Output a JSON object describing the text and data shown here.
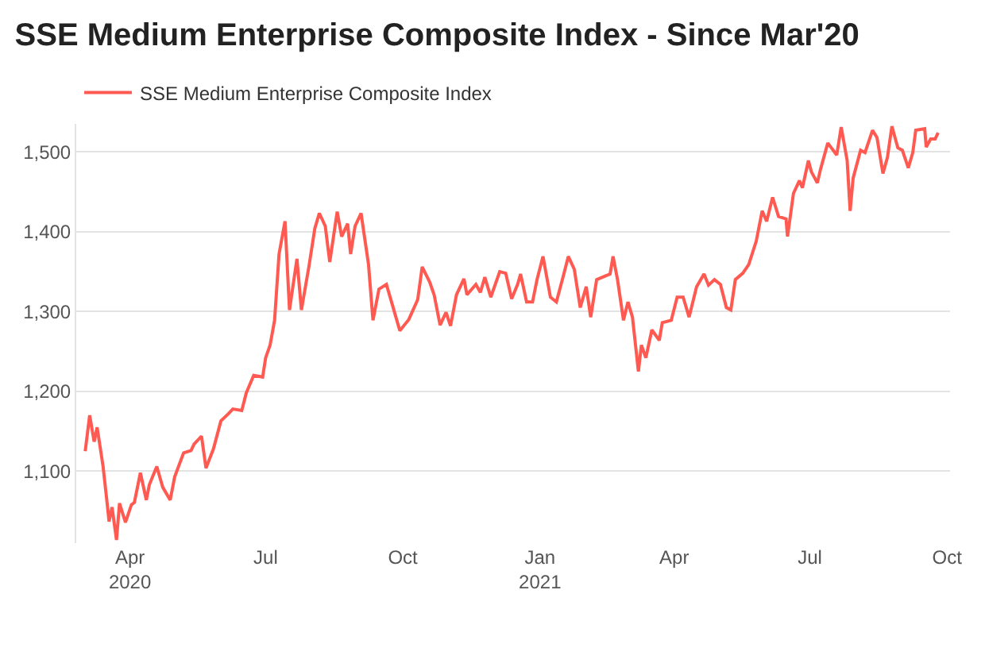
{
  "chart_data": {
    "type": "line",
    "title": "SSE Medium Enterprise Composite Index - Since Mar'20",
    "x": [
      "2020-03-02",
      "2020-03-05",
      "2020-03-08",
      "2020-03-10",
      "2020-03-14",
      "2020-03-17",
      "2020-03-18",
      "2020-03-20",
      "2020-03-23",
      "2020-03-25",
      "2020-03-29",
      "2020-04-02",
      "2020-04-04",
      "2020-04-08",
      "2020-04-12",
      "2020-04-14",
      "2020-04-19",
      "2020-04-23",
      "2020-04-28",
      "2020-05-01",
      "2020-05-07",
      "2020-05-12",
      "2020-05-14",
      "2020-05-19",
      "2020-05-22",
      "2020-05-27",
      "2020-06-01",
      "2020-06-06",
      "2020-06-09",
      "2020-06-15",
      "2020-06-18",
      "2020-06-23",
      "2020-06-29",
      "2020-07-01",
      "2020-07-04",
      "2020-07-07",
      "2020-07-10",
      "2020-07-14",
      "2020-07-17",
      "2020-07-22",
      "2020-07-25",
      "2020-07-30",
      "2020-08-03",
      "2020-08-06",
      "2020-08-10",
      "2020-08-13",
      "2020-08-18",
      "2020-08-21",
      "2020-08-25",
      "2020-08-27",
      "2020-08-30",
      "2020-09-03",
      "2020-09-08",
      "2020-09-11",
      "2020-09-15",
      "2020-09-20",
      "2020-09-25",
      "2020-09-29",
      "2020-10-05",
      "2020-10-11",
      "2020-10-14",
      "2020-10-19",
      "2020-10-22",
      "2020-10-26",
      "2020-10-30",
      "2020-11-02",
      "2020-11-06",
      "2020-11-11",
      "2020-11-13",
      "2020-11-19",
      "2020-11-22",
      "2020-11-25",
      "2020-11-29",
      "2020-12-05",
      "2020-12-09",
      "2020-12-13",
      "2020-12-17",
      "2020-12-19",
      "2020-12-23",
      "2020-12-27",
      "2020-12-30",
      "2021-01-03",
      "2021-01-08",
      "2021-01-12",
      "2021-01-17",
      "2021-01-20",
      "2021-01-24",
      "2021-01-28",
      "2021-02-01",
      "2021-02-04",
      "2021-02-08",
      "2021-02-17",
      "2021-02-19",
      "2021-02-22",
      "2021-02-26",
      "2021-03-01",
      "2021-03-04",
      "2021-03-08",
      "2021-03-10",
      "2021-03-13",
      "2021-03-17",
      "2021-03-22",
      "2021-03-24",
      "2021-03-30",
      "2021-04-03",
      "2021-04-07",
      "2021-04-11",
      "2021-04-16",
      "2021-04-21",
      "2021-04-24",
      "2021-04-28",
      "2021-05-02",
      "2021-05-06",
      "2021-05-09",
      "2021-05-12",
      "2021-05-17",
      "2021-05-21",
      "2021-05-26",
      "2021-05-30",
      "2021-06-02",
      "2021-06-06",
      "2021-06-10",
      "2021-06-15",
      "2021-06-16",
      "2021-06-20",
      "2021-06-24",
      "2021-06-26",
      "2021-06-30",
      "2021-07-02",
      "2021-07-06",
      "2021-07-08",
      "2021-07-13",
      "2021-07-19",
      "2021-07-22",
      "2021-07-26",
      "2021-07-28",
      "2021-07-30",
      "2021-08-04",
      "2021-08-07",
      "2021-08-12",
      "2021-08-15",
      "2021-08-19",
      "2021-08-22",
      "2021-08-25",
      "2021-08-29",
      "2021-09-01",
      "2021-09-05",
      "2021-09-08",
      "2021-09-10",
      "2021-09-16",
      "2021-09-17",
      "2021-09-20",
      "2021-09-23",
      "2021-09-25"
    ],
    "series": [
      {
        "name": "SSE Medium Enterprise Composite Index",
        "color": "#ff5a52",
        "values": [
          1125,
          1170,
          1137,
          1155,
          1106,
          1055,
          1037,
          1055,
          1014,
          1060,
          1036,
          1058,
          1061,
          1098,
          1064,
          1083,
          1106,
          1080,
          1064,
          1093,
          1123,
          1126,
          1134,
          1144,
          1104,
          1128,
          1163,
          1172,
          1178,
          1176,
          1198,
          1220,
          1218,
          1242,
          1258,
          1289,
          1372,
          1413,
          1302,
          1366,
          1302,
          1356,
          1404,
          1423,
          1407,
          1362,
          1425,
          1394,
          1410,
          1372,
          1407,
          1423,
          1359,
          1289,
          1328,
          1334,
          1302,
          1276,
          1290,
          1315,
          1356,
          1337,
          1321,
          1283,
          1299,
          1282,
          1321,
          1341,
          1321,
          1334,
          1324,
          1343,
          1318,
          1350,
          1348,
          1316,
          1334,
          1347,
          1312,
          1312,
          1340,
          1369,
          1318,
          1312,
          1347,
          1369,
          1353,
          1305,
          1331,
          1293,
          1340,
          1347,
          1369,
          1340,
          1289,
          1312,
          1293,
          1225,
          1258,
          1242,
          1277,
          1264,
          1286,
          1289,
          1318,
          1318,
          1293,
          1331,
          1347,
          1333,
          1340,
          1334,
          1305,
          1302,
          1340,
          1348,
          1359,
          1388,
          1426,
          1413,
          1443,
          1419,
          1416,
          1394,
          1448,
          1464,
          1455,
          1489,
          1475,
          1461,
          1477,
          1511,
          1496,
          1531,
          1489,
          1426,
          1467,
          1502,
          1499,
          1527,
          1518,
          1473,
          1493,
          1532,
          1505,
          1502,
          1480,
          1499,
          1527,
          1529,
          1506,
          1516,
          1516,
          1524
        ]
      }
    ],
    "xlim": [
      "2020-02-25",
      "2021-10-03"
    ],
    "xticks": [
      {
        "value": "2020-04-01",
        "label": "Apr\n2020"
      },
      {
        "value": "2020-07-01",
        "label": "Jul"
      },
      {
        "value": "2020-10-01",
        "label": "Oct"
      },
      {
        "value": "2021-01-01",
        "label": "Jan\n2021"
      },
      {
        "value": "2021-04-01",
        "label": "Apr"
      },
      {
        "value": "2021-07-01",
        "label": "Jul"
      },
      {
        "value": "2021-10-01",
        "label": "Oct"
      }
    ],
    "ylim": [
      1010,
      1535
    ],
    "yticks": [
      {
        "value": 1100,
        "label": "1,100"
      },
      {
        "value": 1200,
        "label": "1,200"
      },
      {
        "value": 1300,
        "label": "1,300"
      },
      {
        "value": 1400,
        "label": "1,400"
      },
      {
        "value": 1500,
        "label": "1,500"
      }
    ],
    "grid": "y",
    "legend": "top left",
    "marker": "none",
    "line_style": "solid"
  }
}
